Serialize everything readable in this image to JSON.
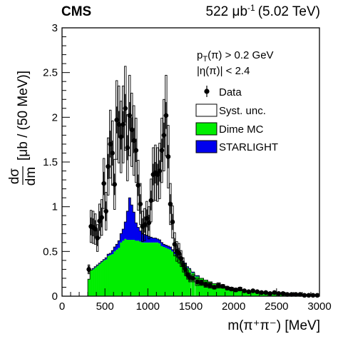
{
  "header": {
    "experiment": "CMS",
    "lumi": "522 μb",
    "lumi_exp": "-1",
    "energy": "(5.02 TeV)"
  },
  "cuts": {
    "pt_p": "p",
    "pt_sub": "T",
    "pt_rest": "(π) > 0.2 GeV",
    "eta": "|η(π)| < 2.4"
  },
  "axes": {
    "x_label": "m(π⁺π⁻) [MeV]",
    "y_frac_num": "dσ",
    "y_frac_den": "dm",
    "y_unit": "[μb / (50 MeV)]"
  },
  "colors": {
    "dime": "#00ee00",
    "starlight": "#0000ee",
    "data": "#000000",
    "syst": "#ffffff"
  },
  "chart_data": {
    "type": "bar",
    "stacked": true,
    "x": [
      312.5,
      337.5,
      362.5,
      387.5,
      412.5,
      437.5,
      462.5,
      487.5,
      512.5,
      537.5,
      562.5,
      587.5,
      612.5,
      637.5,
      662.5,
      687.5,
      712.5,
      737.5,
      762.5,
      787.5,
      812.5,
      837.5,
      862.5,
      887.5,
      912.5,
      937.5,
      962.5,
      987.5,
      1012.5,
      1037.5,
      1062.5,
      1087.5,
      1112.5,
      1137.5,
      1162.5,
      1187.5,
      1212.5,
      1237.5,
      1262.5,
      1287.5,
      1312.5,
      1337.5,
      1362.5,
      1387.5,
      1412.5,
      1437.5,
      1462.5,
      1487.5,
      1525,
      1575,
      1625,
      1675,
      1725,
      1775,
      1825,
      1875,
      1925,
      1975,
      2025,
      2075,
      2125,
      2175,
      2225,
      2275,
      2325,
      2375,
      2425,
      2475,
      2525,
      2575,
      2625,
      2675,
      2725,
      2775,
      2825,
      2875,
      2925,
      2975
    ],
    "series": [
      {
        "name": "Dime MC",
        "type": "bar",
        "values": [
          0.19,
          0.29,
          0.3,
          0.32,
          0.34,
          0.36,
          0.38,
          0.4,
          0.41,
          0.45,
          0.46,
          0.47,
          0.5,
          0.52,
          0.54,
          0.6,
          0.62,
          0.64,
          0.63,
          0.63,
          0.63,
          0.63,
          0.62,
          0.62,
          0.61,
          0.6,
          0.6,
          0.6,
          0.6,
          0.6,
          0.6,
          0.6,
          0.6,
          0.59,
          0.56,
          0.55,
          0.54,
          0.53,
          0.52,
          0.5,
          0.47,
          0.45,
          0.42,
          0.41,
          0.38,
          0.36,
          0.32,
          0.3,
          0.26,
          0.22,
          0.2,
          0.18,
          0.16,
          0.14,
          0.12,
          0.11,
          0.1,
          0.09,
          0.08,
          0.07,
          0.06,
          0.055,
          0.05,
          0.045,
          0.04,
          0.035,
          0.03,
          0.03,
          0.025,
          0.025,
          0.02,
          0.02,
          0.02,
          0.015,
          0.015,
          0.01,
          0.01,
          0.01
        ]
      },
      {
        "name": "STARLIGHT",
        "type": "bar",
        "values": [
          0.0,
          0.0,
          0.01,
          0.01,
          0.01,
          0.01,
          0.01,
          0.01,
          0.02,
          0.02,
          0.02,
          0.04,
          0.05,
          0.06,
          0.08,
          0.1,
          0.13,
          0.19,
          0.32,
          0.47,
          0.39,
          0.31,
          0.2,
          0.15,
          0.12,
          0.1,
          0.09,
          0.08,
          0.07,
          0.06,
          0.05,
          0.05,
          0.04,
          0.04,
          0.04,
          0.03,
          0.03,
          0.03,
          0.03,
          0.02,
          0.02,
          0.02,
          0.02,
          0.02,
          0.01,
          0.01,
          0.01,
          0.01,
          0.01,
          0.01,
          0.0,
          0.0,
          0.0,
          0.0,
          0.0,
          0.0,
          0.0,
          0.0,
          0.0,
          0.0,
          0.0,
          0.0,
          0.0,
          0.0,
          0.0,
          0.0,
          0.0,
          0.0,
          0.0,
          0.0,
          0.0,
          0.0,
          0.0,
          0.0,
          0.0,
          0.0,
          0.0,
          0.0
        ]
      },
      {
        "name": "Data",
        "type": "points",
        "values": [
          0.3,
          0.78,
          0.77,
          0.75,
          0.65,
          0.84,
          0.88,
          1.26,
          0.95,
          1.45,
          1.7,
          1.6,
          1.25,
          1.97,
          1.92,
          1.78,
          1.92,
          2.1,
          1.66,
          2.02,
          1.86,
          1.74,
          1.63,
          1.24,
          1.03,
          0.78,
          0.8,
          0.87,
          0.82,
          1.07,
          1.36,
          1.38,
          1.36,
          1.4,
          1.63,
          1.8,
          2.02,
          1.56,
          1.03,
          0.83,
          0.58,
          0.5,
          0.48,
          0.42,
          0.35,
          0.3,
          0.24,
          0.21,
          0.2,
          0.16,
          0.15,
          0.13,
          0.12,
          0.1,
          0.12,
          0.11,
          0.09,
          0.08,
          0.07,
          0.08,
          0.06,
          0.05,
          0.06,
          0.05,
          0.04,
          0.04,
          0.03,
          0.04,
          0.03,
          0.03,
          0.02,
          0.02,
          0.02,
          0.02,
          0.01,
          0.01,
          0.01,
          0.01
        ],
        "errors": [
          0.04,
          0.1,
          0.1,
          0.1,
          0.09,
          0.11,
          0.11,
          0.13,
          0.11,
          0.14,
          0.15,
          0.14,
          0.12,
          0.15,
          0.15,
          0.14,
          0.15,
          0.16,
          0.14,
          0.15,
          0.14,
          0.14,
          0.13,
          0.12,
          0.11,
          0.09,
          0.09,
          0.1,
          0.09,
          0.11,
          0.12,
          0.12,
          0.12,
          0.12,
          0.13,
          0.14,
          0.15,
          0.13,
          0.11,
          0.09,
          0.07,
          0.07,
          0.06,
          0.06,
          0.05,
          0.05,
          0.04,
          0.04,
          0.03,
          0.03,
          0.03,
          0.03,
          0.02,
          0.02,
          0.02,
          0.02,
          0.02,
          0.02,
          0.02,
          0.02,
          0.02,
          0.01,
          0.01,
          0.01,
          0.01,
          0.01,
          0.01,
          0.01,
          0.01,
          0.01,
          0.01,
          0.01,
          0.01,
          0.01,
          0.01,
          0.01,
          0.01,
          0.01
        ],
        "syst": [
          0.05,
          0.18,
          0.18,
          0.17,
          0.15,
          0.19,
          0.2,
          0.28,
          0.21,
          0.32,
          0.38,
          0.36,
          0.28,
          0.44,
          0.43,
          0.4,
          0.43,
          0.47,
          0.37,
          0.45,
          0.41,
          0.39,
          0.36,
          0.28,
          0.23,
          0.17,
          0.18,
          0.19,
          0.18,
          0.24,
          0.3,
          0.31,
          0.3,
          0.31,
          0.36,
          0.4,
          0.45,
          0.35,
          0.23,
          0.18,
          0.13,
          0.11,
          0.11,
          0.09,
          0.08,
          0.07,
          0.05,
          0.05,
          0.04,
          0.04,
          0.03,
          0.03,
          0.03,
          0.02,
          0.03,
          0.02,
          0.02,
          0.02,
          0.02,
          0.02,
          0.01,
          0.01,
          0.01,
          0.01,
          0.01,
          0.01,
          0.01,
          0.01,
          0.01,
          0.01,
          0.01,
          0.01,
          0.01,
          0.01,
          0.01,
          0.01,
          0.01,
          0.01
        ]
      }
    ],
    "xlim": [
      0,
      3000
    ],
    "ylim": [
      0,
      3
    ],
    "x_ticks": [
      0,
      500,
      1000,
      1500,
      2000,
      2500,
      3000
    ],
    "y_ticks": [
      0,
      0.5,
      1,
      1.5,
      2,
      2.5,
      3
    ],
    "x_tick_labels": [
      "0",
      "500",
      "1000",
      "1500",
      "2000",
      "2500",
      "3000"
    ],
    "y_tick_labels": [
      "0",
      "0.5",
      "1",
      "1.5",
      "2",
      "2.5",
      "3"
    ],
    "legend": [
      "Data",
      "Syst. unc.",
      "Dime MC",
      "STARLIGHT"
    ],
    "legend_position": "top-right",
    "grid": false
  }
}
